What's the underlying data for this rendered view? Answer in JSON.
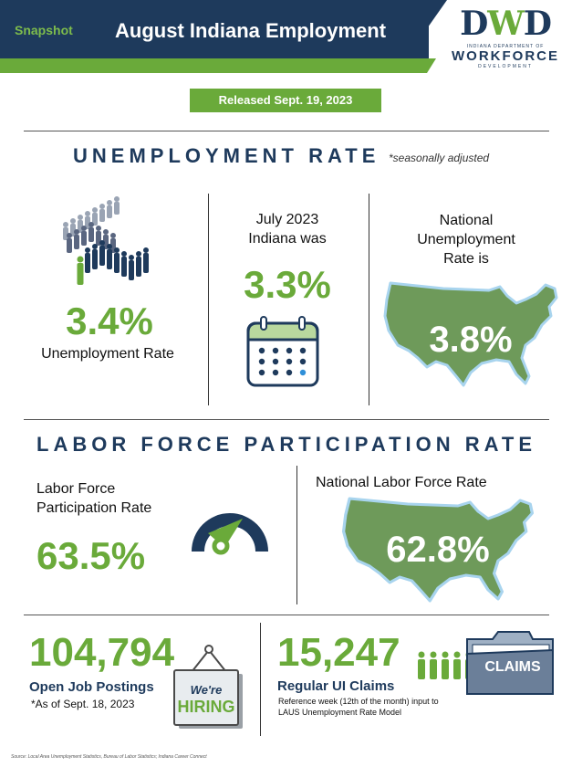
{
  "header": {
    "snapshot": "Snapshot",
    "title": "August Indiana Employment",
    "logo_mark_1": "D",
    "logo_mark_2": "W",
    "logo_mark_3": "D",
    "logo_line1": "INDIANA DEPARTMENT OF",
    "logo_line2": "WORKFORCE",
    "logo_line3": "DEVELOPMENT"
  },
  "released": "Released  Sept. 19, 2023",
  "unemployment": {
    "title": "UNEMPLOYMENT RATE",
    "note": "*seasonally adjusted",
    "indiana_value": "3.4%",
    "indiana_label": "Unemployment  Rate",
    "july_label_1": "July 2023",
    "july_label_2": "Indiana was",
    "july_value": "3.3%",
    "national_label_1": "National",
    "national_label_2": "Unemployment",
    "national_label_3": "Rate is",
    "national_value": "3.8%"
  },
  "lfpr": {
    "title": "LABOR FORCE PARTICIPATION RATE",
    "indiana_label_1": "Labor Force",
    "indiana_label_2": "Participation Rate",
    "indiana_value": "63.5%",
    "national_label": "National  Labor Force Rate",
    "national_value": "62.8%"
  },
  "jobs": {
    "value": "104,794",
    "label": "Open Job Postings",
    "note": "*As of Sept. 18, 2023",
    "sign_line1": "We're",
    "sign_line2": "HIRING"
  },
  "claims": {
    "value": "15,247",
    "label": "Regular UI Claims",
    "note_1": "Reference week (12th of the month) input to",
    "note_2": "LAUS Unemployment Rate Model",
    "folder_label": "CLAIMS"
  },
  "source": "Source: Local Area Unemployment Statistics, Bureau of Labor Statistics; Indiana Career Connect",
  "colors": {
    "navy": "#1e3a5c",
    "green": "#6aaa3a",
    "map_fill": "#6e9a5a",
    "map_outline": "#a8d4ee"
  },
  "icons": [
    "people-crowd-icon",
    "calendar-icon",
    "us-map-icon",
    "gauge-icon",
    "hiring-sign-icon",
    "people-row-icon",
    "folder-icon"
  ]
}
